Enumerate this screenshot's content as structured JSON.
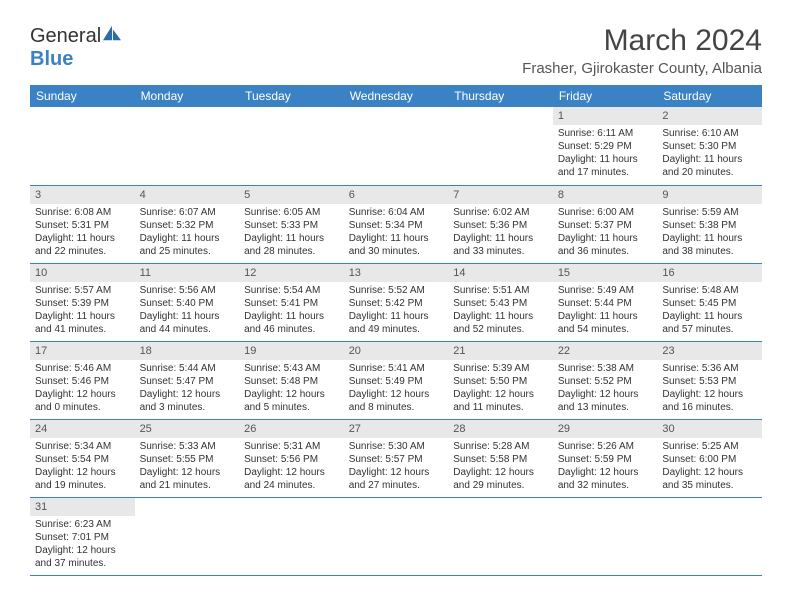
{
  "logo": {
    "text1": "General",
    "text2": "Blue"
  },
  "title": "March 2024",
  "location": "Frasher, Gjirokaster County, Albania",
  "colors": {
    "header_bg": "#3b82c4",
    "header_fg": "#ffffff",
    "daynum_bg": "#e8e8e8",
    "row_border": "#3b82c4",
    "text": "#333333"
  },
  "dayHeaders": [
    "Sunday",
    "Monday",
    "Tuesday",
    "Wednesday",
    "Thursday",
    "Friday",
    "Saturday"
  ],
  "weeks": [
    [
      null,
      null,
      null,
      null,
      null,
      {
        "n": "1",
        "sunrise": "Sunrise: 6:11 AM",
        "sunset": "Sunset: 5:29 PM",
        "day": "Daylight: 11 hours and 17 minutes."
      },
      {
        "n": "2",
        "sunrise": "Sunrise: 6:10 AM",
        "sunset": "Sunset: 5:30 PM",
        "day": "Daylight: 11 hours and 20 minutes."
      }
    ],
    [
      {
        "n": "3",
        "sunrise": "Sunrise: 6:08 AM",
        "sunset": "Sunset: 5:31 PM",
        "day": "Daylight: 11 hours and 22 minutes."
      },
      {
        "n": "4",
        "sunrise": "Sunrise: 6:07 AM",
        "sunset": "Sunset: 5:32 PM",
        "day": "Daylight: 11 hours and 25 minutes."
      },
      {
        "n": "5",
        "sunrise": "Sunrise: 6:05 AM",
        "sunset": "Sunset: 5:33 PM",
        "day": "Daylight: 11 hours and 28 minutes."
      },
      {
        "n": "6",
        "sunrise": "Sunrise: 6:04 AM",
        "sunset": "Sunset: 5:34 PM",
        "day": "Daylight: 11 hours and 30 minutes."
      },
      {
        "n": "7",
        "sunrise": "Sunrise: 6:02 AM",
        "sunset": "Sunset: 5:36 PM",
        "day": "Daylight: 11 hours and 33 minutes."
      },
      {
        "n": "8",
        "sunrise": "Sunrise: 6:00 AM",
        "sunset": "Sunset: 5:37 PM",
        "day": "Daylight: 11 hours and 36 minutes."
      },
      {
        "n": "9",
        "sunrise": "Sunrise: 5:59 AM",
        "sunset": "Sunset: 5:38 PM",
        "day": "Daylight: 11 hours and 38 minutes."
      }
    ],
    [
      {
        "n": "10",
        "sunrise": "Sunrise: 5:57 AM",
        "sunset": "Sunset: 5:39 PM",
        "day": "Daylight: 11 hours and 41 minutes."
      },
      {
        "n": "11",
        "sunrise": "Sunrise: 5:56 AM",
        "sunset": "Sunset: 5:40 PM",
        "day": "Daylight: 11 hours and 44 minutes."
      },
      {
        "n": "12",
        "sunrise": "Sunrise: 5:54 AM",
        "sunset": "Sunset: 5:41 PM",
        "day": "Daylight: 11 hours and 46 minutes."
      },
      {
        "n": "13",
        "sunrise": "Sunrise: 5:52 AM",
        "sunset": "Sunset: 5:42 PM",
        "day": "Daylight: 11 hours and 49 minutes."
      },
      {
        "n": "14",
        "sunrise": "Sunrise: 5:51 AM",
        "sunset": "Sunset: 5:43 PM",
        "day": "Daylight: 11 hours and 52 minutes."
      },
      {
        "n": "15",
        "sunrise": "Sunrise: 5:49 AM",
        "sunset": "Sunset: 5:44 PM",
        "day": "Daylight: 11 hours and 54 minutes."
      },
      {
        "n": "16",
        "sunrise": "Sunrise: 5:48 AM",
        "sunset": "Sunset: 5:45 PM",
        "day": "Daylight: 11 hours and 57 minutes."
      }
    ],
    [
      {
        "n": "17",
        "sunrise": "Sunrise: 5:46 AM",
        "sunset": "Sunset: 5:46 PM",
        "day": "Daylight: 12 hours and 0 minutes."
      },
      {
        "n": "18",
        "sunrise": "Sunrise: 5:44 AM",
        "sunset": "Sunset: 5:47 PM",
        "day": "Daylight: 12 hours and 3 minutes."
      },
      {
        "n": "19",
        "sunrise": "Sunrise: 5:43 AM",
        "sunset": "Sunset: 5:48 PM",
        "day": "Daylight: 12 hours and 5 minutes."
      },
      {
        "n": "20",
        "sunrise": "Sunrise: 5:41 AM",
        "sunset": "Sunset: 5:49 PM",
        "day": "Daylight: 12 hours and 8 minutes."
      },
      {
        "n": "21",
        "sunrise": "Sunrise: 5:39 AM",
        "sunset": "Sunset: 5:50 PM",
        "day": "Daylight: 12 hours and 11 minutes."
      },
      {
        "n": "22",
        "sunrise": "Sunrise: 5:38 AM",
        "sunset": "Sunset: 5:52 PM",
        "day": "Daylight: 12 hours and 13 minutes."
      },
      {
        "n": "23",
        "sunrise": "Sunrise: 5:36 AM",
        "sunset": "Sunset: 5:53 PM",
        "day": "Daylight: 12 hours and 16 minutes."
      }
    ],
    [
      {
        "n": "24",
        "sunrise": "Sunrise: 5:34 AM",
        "sunset": "Sunset: 5:54 PM",
        "day": "Daylight: 12 hours and 19 minutes."
      },
      {
        "n": "25",
        "sunrise": "Sunrise: 5:33 AM",
        "sunset": "Sunset: 5:55 PM",
        "day": "Daylight: 12 hours and 21 minutes."
      },
      {
        "n": "26",
        "sunrise": "Sunrise: 5:31 AM",
        "sunset": "Sunset: 5:56 PM",
        "day": "Daylight: 12 hours and 24 minutes."
      },
      {
        "n": "27",
        "sunrise": "Sunrise: 5:30 AM",
        "sunset": "Sunset: 5:57 PM",
        "day": "Daylight: 12 hours and 27 minutes."
      },
      {
        "n": "28",
        "sunrise": "Sunrise: 5:28 AM",
        "sunset": "Sunset: 5:58 PM",
        "day": "Daylight: 12 hours and 29 minutes."
      },
      {
        "n": "29",
        "sunrise": "Sunrise: 5:26 AM",
        "sunset": "Sunset: 5:59 PM",
        "day": "Daylight: 12 hours and 32 minutes."
      },
      {
        "n": "30",
        "sunrise": "Sunrise: 5:25 AM",
        "sunset": "Sunset: 6:00 PM",
        "day": "Daylight: 12 hours and 35 minutes."
      }
    ],
    [
      {
        "n": "31",
        "sunrise": "Sunrise: 6:23 AM",
        "sunset": "Sunset: 7:01 PM",
        "day": "Daylight: 12 hours and 37 minutes."
      },
      null,
      null,
      null,
      null,
      null,
      null
    ]
  ]
}
